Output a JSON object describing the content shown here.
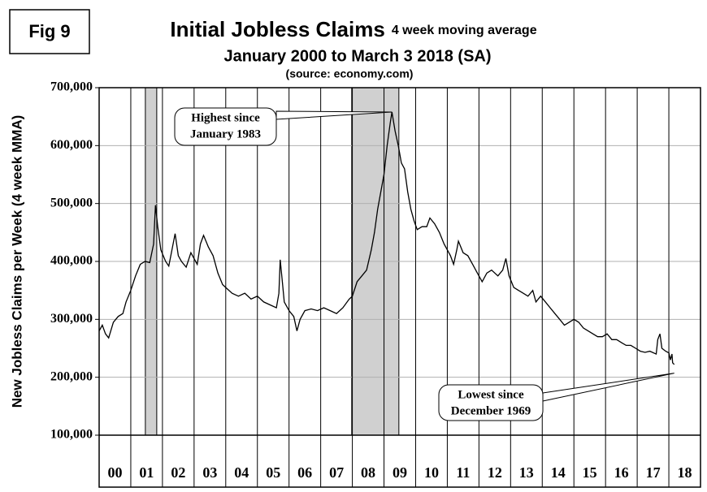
{
  "figure_label": "Fig 9",
  "chart_data": {
    "type": "line",
    "title": "Initial Jobless Claims",
    "title_note": "4 week moving average",
    "subtitle": "January 2000 to March 3 2018 (SA)",
    "source": "(source: economy.com)",
    "y_label": "New Jobless Claims per Week (4 week MMA)",
    "ylim": [
      100000,
      700000
    ],
    "yticks": [
      {
        "value": 100000,
        "label": "100,000"
      },
      {
        "value": 200000,
        "label": "200,000"
      },
      {
        "value": 300000,
        "label": "300,000"
      },
      {
        "value": 400000,
        "label": "400,000"
      },
      {
        "value": 500000,
        "label": "500,000"
      },
      {
        "value": 600000,
        "label": "600,000"
      },
      {
        "value": 700000,
        "label": "700,000"
      }
    ],
    "xlim": [
      2000,
      2019
    ],
    "year_labels": [
      "00",
      "01",
      "02",
      "03",
      "04",
      "05",
      "06",
      "07",
      "08",
      "09",
      "10",
      "11",
      "12",
      "13",
      "14",
      "15",
      "16",
      "17",
      "18"
    ],
    "grid": true,
    "shaded_periods": [
      [
        2001.46,
        2001.82
      ],
      [
        2007.98,
        2009.47
      ]
    ],
    "series": [
      {
        "color": "#000000",
        "x": [
          2000.0,
          2000.1,
          2000.2,
          2000.3,
          2000.45,
          2000.6,
          2000.75,
          2000.85,
          2001.0,
          2001.15,
          2001.3,
          2001.45,
          2001.6,
          2001.72,
          2001.78,
          2001.85,
          2001.95,
          2002.1,
          2002.2,
          2002.3,
          2002.4,
          2002.5,
          2002.6,
          2002.75,
          2002.9,
          2003.0,
          2003.1,
          2003.2,
          2003.3,
          2003.45,
          2003.6,
          2003.75,
          2003.9,
          2004.0,
          2004.2,
          2004.4,
          2004.6,
          2004.8,
          2005.0,
          2005.2,
          2005.4,
          2005.6,
          2005.68,
          2005.72,
          2005.78,
          2005.85,
          2006.0,
          2006.15,
          2006.25,
          2006.35,
          2006.5,
          2006.7,
          2006.9,
          2007.1,
          2007.3,
          2007.5,
          2007.7,
          2007.9,
          2008.0,
          2008.15,
          2008.3,
          2008.45,
          2008.6,
          2008.7,
          2008.8,
          2008.9,
          2009.0,
          2009.1,
          2009.2,
          2009.25,
          2009.35,
          2009.45,
          2009.55,
          2009.65,
          2009.75,
          2009.85,
          2009.95,
          2010.05,
          2010.2,
          2010.35,
          2010.45,
          2010.6,
          2010.75,
          2010.9,
          2011.0,
          2011.1,
          2011.2,
          2011.3,
          2011.35,
          2011.5,
          2011.65,
          2011.8,
          2011.95,
          2012.1,
          2012.25,
          2012.4,
          2012.6,
          2012.75,
          2012.85,
          2012.95,
          2013.1,
          2013.25,
          2013.4,
          2013.55,
          2013.7,
          2013.8,
          2013.95,
          2014.1,
          2014.25,
          2014.4,
          2014.55,
          2014.7,
          2014.85,
          2015.0,
          2015.15,
          2015.3,
          2015.45,
          2015.6,
          2015.75,
          2015.9,
          2016.05,
          2016.2,
          2016.35,
          2016.5,
          2016.65,
          2016.8,
          2016.95,
          2017.1,
          2017.25,
          2017.4,
          2017.6,
          2017.65,
          2017.72,
          2017.78,
          2017.9,
          2018.0,
          2018.05,
          2018.1,
          2018.12,
          2018.17
        ],
        "values": [
          280000,
          290000,
          275000,
          268000,
          295000,
          305000,
          310000,
          330000,
          350000,
          375000,
          395000,
          400000,
          398000,
          430000,
          497000,
          460000,
          420000,
          400000,
          392000,
          420000,
          448000,
          410000,
          400000,
          390000,
          415000,
          405000,
          395000,
          430000,
          445000,
          425000,
          410000,
          380000,
          360000,
          355000,
          345000,
          340000,
          345000,
          335000,
          340000,
          330000,
          325000,
          320000,
          345000,
          403000,
          370000,
          330000,
          315000,
          305000,
          280000,
          300000,
          315000,
          318000,
          315000,
          320000,
          315000,
          310000,
          320000,
          335000,
          340000,
          365000,
          375000,
          385000,
          420000,
          450000,
          490000,
          520000,
          550000,
          600000,
          640000,
          658000,
          625000,
          600000,
          570000,
          560000,
          520000,
          490000,
          470000,
          455000,
          460000,
          460000,
          475000,
          465000,
          450000,
          430000,
          420000,
          410000,
          395000,
          420000,
          435000,
          415000,
          410000,
          395000,
          380000,
          365000,
          380000,
          385000,
          375000,
          385000,
          405000,
          375000,
          355000,
          350000,
          345000,
          340000,
          350000,
          330000,
          340000,
          330000,
          320000,
          310000,
          300000,
          290000,
          295000,
          300000,
          295000,
          285000,
          280000,
          275000,
          270000,
          270000,
          275000,
          265000,
          265000,
          260000,
          255000,
          255000,
          250000,
          245000,
          243000,
          245000,
          240000,
          265000,
          275000,
          250000,
          245000,
          242000,
          230000,
          240000,
          225000,
          222000
        ]
      }
    ],
    "annotations": [
      {
        "text": [
          "Highest since",
          "January 1983"
        ],
        "x": 2009.25,
        "y": 658000
      },
      {
        "text": [
          "Lowest since",
          "December 1969"
        ],
        "x": 2018.17,
        "y": 207000
      }
    ]
  }
}
